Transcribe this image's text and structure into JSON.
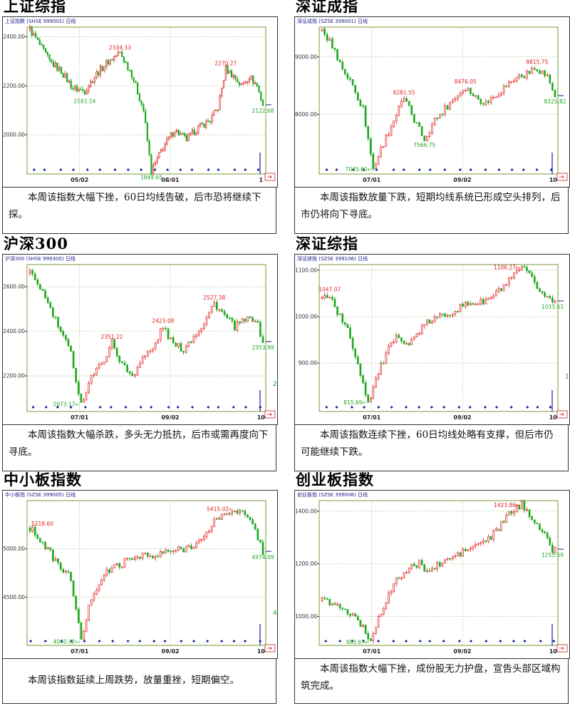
{
  "colors": {
    "up": "#e02020",
    "down": "#1ea81e",
    "grid": "#7a9a3a",
    "axis": "#2a2a8a",
    "marker": "#1a1aa0",
    "border": "#333333"
  },
  "panels": [
    {
      "title": "上证综指",
      "chart_label": "上证指数 (SHSE 999001) 日线",
      "comment": "本周该指数大幅下挫，60日均线告破，后市恐将继续下探。",
      "chart_data": {
        "type": "candlestick",
        "ylim": [
          1840,
          2440
        ],
        "y_ticks": [
          "2400.00",
          "2200.00",
          "2000.00"
        ],
        "y_tick_values": [
          2400,
          2200,
          2000
        ],
        "x_ticks": [
          "05/02",
          "08/01",
          "1"
        ],
        "anchors": [
          [
            0,
            2430
          ],
          [
            4,
            2380
          ],
          [
            10,
            2300
          ],
          [
            16,
            2260
          ],
          [
            22,
            2190
          ],
          [
            28,
            2180
          ],
          [
            34,
            2250
          ],
          [
            40,
            2300
          ],
          [
            46,
            2334.33
          ],
          [
            52,
            2250
          ],
          [
            58,
            2100
          ],
          [
            62,
            1849.65
          ],
          [
            68,
            1950
          ],
          [
            74,
            2020
          ],
          [
            80,
            1980
          ],
          [
            86,
            2030
          ],
          [
            92,
            2060
          ],
          [
            96,
            2110
          ],
          [
            100,
            2270.27
          ],
          [
            104,
            2240
          ],
          [
            108,
            2200
          ],
          [
            112,
            2240
          ],
          [
            116,
            2200
          ],
          [
            119,
            2122.68
          ]
        ],
        "annotations": [
          {
            "label": "2334.33",
            "x": 46,
            "y": 2334.33,
            "pos": "above",
            "color": "up"
          },
          {
            "label": "2161.14",
            "x": 28,
            "y": 2161.14,
            "pos": "below",
            "color": "down"
          },
          {
            "label": "1849.65",
            "x": 62,
            "y": 1849.65,
            "pos": "below",
            "color": "down"
          },
          {
            "label": "2270.27",
            "x": 100,
            "y": 2270.27,
            "pos": "above",
            "color": "up"
          },
          {
            "label": "2122.68",
            "x": 119,
            "y": 2122.68,
            "pos": "below",
            "color": "down"
          }
        ]
      }
    },
    {
      "title": "深证成指",
      "chart_label": "深证成指 (SZSE 399001) 日线",
      "comment": "本周该指数放量下跌，短期均线系统已形成空头排列，后市仍将向下寻底。",
      "chart_data": {
        "type": "candlestick",
        "ylim": [
          6960,
          9520
        ],
        "y_ticks": [
          "9000.00",
          "8000.00"
        ],
        "y_tick_values": [
          9000,
          8000
        ],
        "x_ticks": [
          "07/01",
          "09/02",
          "10"
        ],
        "anchors": [
          [
            0,
            9450
          ],
          [
            4,
            9200
          ],
          [
            8,
            8800
          ],
          [
            12,
            8500
          ],
          [
            16,
            8100
          ],
          [
            20,
            7045.6
          ],
          [
            24,
            7500
          ],
          [
            28,
            7900
          ],
          [
            32,
            8281.55
          ],
          [
            36,
            7900
          ],
          [
            40,
            7566.75
          ],
          [
            44,
            7900
          ],
          [
            48,
            8100
          ],
          [
            52,
            8300
          ],
          [
            56,
            8476.05
          ],
          [
            60,
            8300
          ],
          [
            64,
            8200
          ],
          [
            68,
            8350
          ],
          [
            72,
            8500
          ],
          [
            76,
            8650
          ],
          [
            80,
            8700
          ],
          [
            84,
            8815.75
          ],
          [
            88,
            8650
          ],
          [
            91,
            8325.82
          ]
        ],
        "annotations": [
          {
            "label": "8281.55",
            "x": 32,
            "y": 8281.55,
            "pos": "above",
            "color": "up"
          },
          {
            "label": "7566.75",
            "x": 40,
            "y": 7566.75,
            "pos": "below",
            "color": "down"
          },
          {
            "label": "7045.60",
            "x": 20,
            "y": 7045.6,
            "pos": "left",
            "color": "down"
          },
          {
            "label": "8476.05",
            "x": 56,
            "y": 8476.05,
            "pos": "above",
            "color": "up"
          },
          {
            "label": "8815.75",
            "x": 84,
            "y": 8815.75,
            "pos": "above",
            "color": "up"
          },
          {
            "label": "8325.82",
            "x": 91,
            "y": 8325.82,
            "pos": "below",
            "color": "down"
          }
        ]
      }
    },
    {
      "title": "沪深300",
      "chart_label": "沪深300 (SHSE 999300) 日线",
      "comment": "本周该指数大幅杀跌，多头无力抵抗，后市或需再度向下寻底。",
      "chart_data": {
        "type": "candlestick",
        "ylim": [
          2040,
          2700
        ],
        "y_ticks": [
          "2600.00",
          "2400.00",
          "2200.00"
        ],
        "y_tick_values": [
          2600,
          2400,
          2200
        ],
        "x_ticks": [
          "07/01",
          "09/02",
          "10"
        ],
        "anchors": [
          [
            0,
            2660
          ],
          [
            4,
            2600
          ],
          [
            8,
            2500
          ],
          [
            12,
            2400
          ],
          [
            16,
            2300
          ],
          [
            20,
            2073.17
          ],
          [
            24,
            2200
          ],
          [
            28,
            2250
          ],
          [
            32,
            2351.22
          ],
          [
            36,
            2250
          ],
          [
            40,
            2200
          ],
          [
            44,
            2280
          ],
          [
            48,
            2320
          ],
          [
            52,
            2423.08
          ],
          [
            56,
            2340
          ],
          [
            60,
            2320
          ],
          [
            64,
            2380
          ],
          [
            68,
            2440
          ],
          [
            72,
            2527.38
          ],
          [
            76,
            2470
          ],
          [
            80,
            2420
          ],
          [
            84,
            2450
          ],
          [
            88,
            2460
          ],
          [
            91,
            2353.99
          ]
        ],
        "annotations": [
          {
            "label": "2351.22",
            "x": 32,
            "y": 2351.22,
            "pos": "above",
            "color": "up"
          },
          {
            "label": "2073.17",
            "x": 20,
            "y": 2073.17,
            "pos": "left",
            "color": "down"
          },
          {
            "label": "2423.08",
            "x": 52,
            "y": 2423.08,
            "pos": "above",
            "color": "up"
          },
          {
            "label": "2527.38",
            "x": 72,
            "y": 2527.38,
            "pos": "above",
            "color": "up"
          },
          {
            "label": "2353.99",
            "x": 91,
            "y": 2353.99,
            "pos": "below",
            "color": "down"
          }
        ],
        "edge_text": "2"
      }
    },
    {
      "title": "深证综指",
      "chart_label": "深证综指 (SZSE 399106) 日线",
      "comment": "本周该指数连续下挫，60日均线处略有支撑，但后市仍可能继续下跌。",
      "chart_data": {
        "type": "candlestick",
        "ylim": [
          796,
          1112
        ],
        "y_ticks": [
          "1100.00",
          "1000.00",
          "900.00"
        ],
        "y_tick_values": [
          1100,
          1000,
          900
        ],
        "x_ticks": [
          "07/01",
          "09/02",
          "10"
        ],
        "anchors": [
          [
            0,
            1040
          ],
          [
            3,
            1047.07
          ],
          [
            6,
            1010
          ],
          [
            10,
            970
          ],
          [
            14,
            900
          ],
          [
            18,
            815.69
          ],
          [
            22,
            880
          ],
          [
            26,
            930
          ],
          [
            30,
            960
          ],
          [
            34,
            940
          ],
          [
            38,
            970
          ],
          [
            42,
            990
          ],
          [
            46,
            1000
          ],
          [
            50,
            1010
          ],
          [
            54,
            1020
          ],
          [
            58,
            1030
          ],
          [
            62,
            1030
          ],
          [
            66,
            1040
          ],
          [
            70,
            1060
          ],
          [
            74,
            1080
          ],
          [
            78,
            1106.27
          ],
          [
            82,
            1080
          ],
          [
            86,
            1050
          ],
          [
            90,
            1033.63
          ]
        ],
        "annotations": [
          {
            "label": "1047.07",
            "x": 3,
            "y": 1047.07,
            "pos": "above",
            "color": "up"
          },
          {
            "label": "815.69",
            "x": 18,
            "y": 815.69,
            "pos": "left",
            "color": "down"
          },
          {
            "label": "1106.27",
            "x": 78,
            "y": 1106.27,
            "pos": "left",
            "color": "up"
          },
          {
            "label": "1033.63",
            "x": 90,
            "y": 1033.63,
            "pos": "below",
            "color": "down"
          }
        ],
        "edge_text": "1"
      }
    },
    {
      "title": "中小板指数",
      "chart_label": "中小板指 (SZSE 399005) 日线",
      "comment": "本周该指数延续上周跌势，放量重挫，短期偏空。",
      "chart_data": {
        "type": "candlestick",
        "ylim": [
          4000,
          5500
        ],
        "y_ticks": [
          "5000.00",
          "4500.00"
        ],
        "y_tick_values": [
          5000,
          4500
        ],
        "x_ticks": [
          "07/01",
          "09/02",
          "10"
        ],
        "anchors": [
          [
            0,
            5218.6
          ],
          [
            4,
            5100
          ],
          [
            8,
            4950
          ],
          [
            12,
            4800
          ],
          [
            16,
            4700
          ],
          [
            20,
            4040.92
          ],
          [
            24,
            4500
          ],
          [
            28,
            4700
          ],
          [
            32,
            4800
          ],
          [
            36,
            4850
          ],
          [
            40,
            4900
          ],
          [
            44,
            4950
          ],
          [
            48,
            4900
          ],
          [
            52,
            4960
          ],
          [
            56,
            4980
          ],
          [
            60,
            5000
          ],
          [
            64,
            5050
          ],
          [
            68,
            5100
          ],
          [
            72,
            5300
          ],
          [
            76,
            5350
          ],
          [
            80,
            5415.02
          ],
          [
            84,
            5350
          ],
          [
            88,
            5200
          ],
          [
            91,
            4974.09
          ]
        ],
        "annotations": [
          {
            "label": "5218.60",
            "x": 0,
            "y": 5218.6,
            "pos": "right",
            "color": "up"
          },
          {
            "label": "4040.92",
            "x": 20,
            "y": 4040.92,
            "pos": "left",
            "color": "down"
          },
          {
            "label": "5415.02",
            "x": 80,
            "y": 5415.02,
            "pos": "left",
            "color": "up"
          },
          {
            "label": "4974.09",
            "x": 91,
            "y": 4974.09,
            "pos": "below",
            "color": "down"
          }
        ],
        "edge_text": "4"
      }
    },
    {
      "title": "创业板指数",
      "chart_label": "创业板指 (SZSE 399006) 日线",
      "comment": "本周该指数大幅下挫，成份股无力护盘，宣告头部区域构筑完成。",
      "chart_data": {
        "type": "candlestick",
        "ylim": [
          890,
          1440
        ],
        "y_ticks": [
          "1400.00",
          "1200.00",
          "1000.00"
        ],
        "y_tick_values": [
          1400,
          1200,
          1000
        ],
        "x_ticks": [
          "07/01",
          "09/02",
          "10"
        ],
        "anchors": [
          [
            0,
            1060
          ],
          [
            4,
            1050
          ],
          [
            8,
            1030
          ],
          [
            12,
            1000
          ],
          [
            16,
            960
          ],
          [
            19,
            903.67
          ],
          [
            22,
            1000
          ],
          [
            26,
            1080
          ],
          [
            30,
            1150
          ],
          [
            34,
            1180
          ],
          [
            38,
            1200
          ],
          [
            42,
            1170
          ],
          [
            46,
            1200
          ],
          [
            50,
            1220
          ],
          [
            54,
            1240
          ],
          [
            58,
            1260
          ],
          [
            62,
            1280
          ],
          [
            66,
            1300
          ],
          [
            70,
            1350
          ],
          [
            74,
            1400
          ],
          [
            78,
            1423.86
          ],
          [
            82,
            1380
          ],
          [
            86,
            1320
          ],
          [
            90,
            1255.59
          ]
        ],
        "annotations": [
          {
            "label": "1423.86",
            "x": 78,
            "y": 1423.86,
            "pos": "left",
            "color": "up"
          },
          {
            "label": "903.67",
            "x": 19,
            "y": 903.67,
            "pos": "left",
            "color": "down"
          },
          {
            "label": "1255.59",
            "x": 90,
            "y": 1255.59,
            "pos": "below",
            "color": "down"
          }
        ]
      }
    }
  ]
}
